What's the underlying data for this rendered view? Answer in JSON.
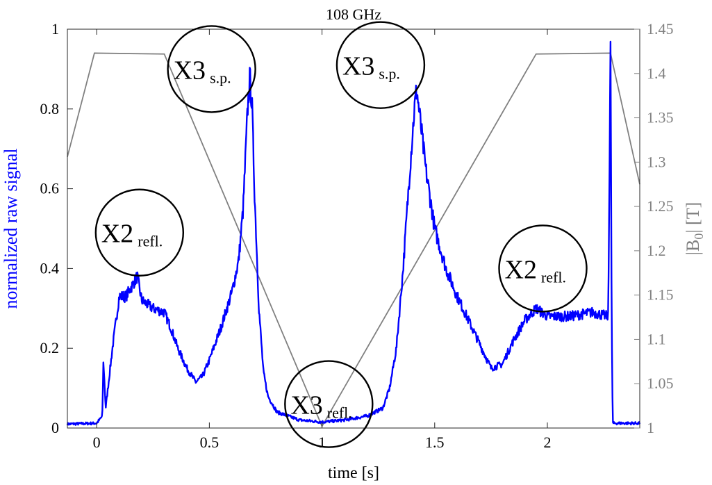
{
  "chart_data": {
    "type": "line",
    "title": "108 GHz",
    "xlabel": "time [s]",
    "ylabel": "normalized raw signal",
    "ylabel_right": "|B0| [T]",
    "ylabel_right_parts": {
      "pre": "|B",
      "sub": "0",
      "post": "|  [T]"
    },
    "xlim": [
      -0.13,
      2.41
    ],
    "ylim": [
      0,
      1
    ],
    "ylim_right": [
      1,
      1.45
    ],
    "xticks": [
      0,
      0.5,
      1,
      1.5,
      2
    ],
    "xtick_labels": [
      "0",
      "0.5",
      "1",
      "1.5",
      "2"
    ],
    "yticks": [
      0,
      0.2,
      0.4,
      0.6,
      0.8,
      1
    ],
    "ytick_labels": [
      "0",
      "0.2",
      "0.4",
      "0.6",
      "0.8",
      "1"
    ],
    "yticks_right": [
      1,
      1.05,
      1.1,
      1.15,
      1.2,
      1.25,
      1.3,
      1.35,
      1.4,
      1.45
    ],
    "ytick_labels_right": [
      "1",
      "1.05",
      "1.1",
      "1.15",
      "1.2",
      "1.25",
      "1.3",
      "1.35",
      "1.4",
      "1.45"
    ],
    "colors": {
      "signal": "#0000ff",
      "field": "#808080",
      "axis_right": "#808080",
      "ylabel": "#0000ff"
    },
    "series": [
      {
        "name": "normalized raw signal",
        "axis": "left",
        "x": [
          -0.13,
          0.0,
          0.025,
          0.03,
          0.04,
          0.05,
          0.07,
          0.1,
          0.13,
          0.16,
          0.18,
          0.2,
          0.25,
          0.3,
          0.33,
          0.36,
          0.4,
          0.44,
          0.47,
          0.5,
          0.55,
          0.6,
          0.63,
          0.65,
          0.67,
          0.68,
          0.69,
          0.7,
          0.72,
          0.74,
          0.76,
          0.8,
          0.9,
          1.0,
          1.1,
          1.2,
          1.27,
          1.3,
          1.33,
          1.36,
          1.39,
          1.41,
          1.42,
          1.44,
          1.46,
          1.5,
          1.55,
          1.6,
          1.65,
          1.7,
          1.75,
          1.8,
          1.85,
          1.9,
          1.95,
          2.0,
          2.1,
          2.2,
          2.27,
          2.275,
          2.28,
          2.285,
          2.29,
          2.35,
          2.41
        ],
        "y": [
          0.01,
          0.012,
          0.03,
          0.17,
          0.05,
          0.1,
          0.2,
          0.33,
          0.33,
          0.36,
          0.38,
          0.32,
          0.3,
          0.29,
          0.25,
          0.2,
          0.15,
          0.115,
          0.13,
          0.17,
          0.25,
          0.34,
          0.42,
          0.55,
          0.8,
          0.88,
          0.8,
          0.6,
          0.3,
          0.14,
          0.08,
          0.04,
          0.02,
          0.015,
          0.02,
          0.03,
          0.05,
          0.1,
          0.2,
          0.4,
          0.65,
          0.8,
          0.85,
          0.75,
          0.65,
          0.5,
          0.4,
          0.33,
          0.27,
          0.21,
          0.15,
          0.16,
          0.22,
          0.27,
          0.3,
          0.28,
          0.28,
          0.29,
          0.28,
          0.6,
          1.0,
          0.3,
          0.012,
          0.012,
          0.012
        ]
      },
      {
        "name": "|B0|",
        "axis": "right",
        "x": [
          -0.13,
          -0.01,
          0.3,
          1.0,
          1.95,
          2.28,
          2.41
        ],
        "y": [
          1.306,
          1.423,
          1.422,
          1.002,
          1.422,
          1.423,
          1.275
        ]
      }
    ],
    "annotations": [
      {
        "main": "X3",
        "sub": "s.p.",
        "x": 0.51,
        "y": 0.9
      },
      {
        "main": "X2",
        "sub": "refl.",
        "x": 0.19,
        "y": 0.49
      },
      {
        "main": "X3",
        "sub": "refl.",
        "x": 1.03,
        "y": 0.06
      },
      {
        "main": "X3",
        "sub": "s.p.",
        "x": 1.26,
        "y": 0.91
      },
      {
        "main": "X2",
        "sub": "refl.",
        "x": 1.98,
        "y": 0.4
      }
    ],
    "grid": false
  }
}
